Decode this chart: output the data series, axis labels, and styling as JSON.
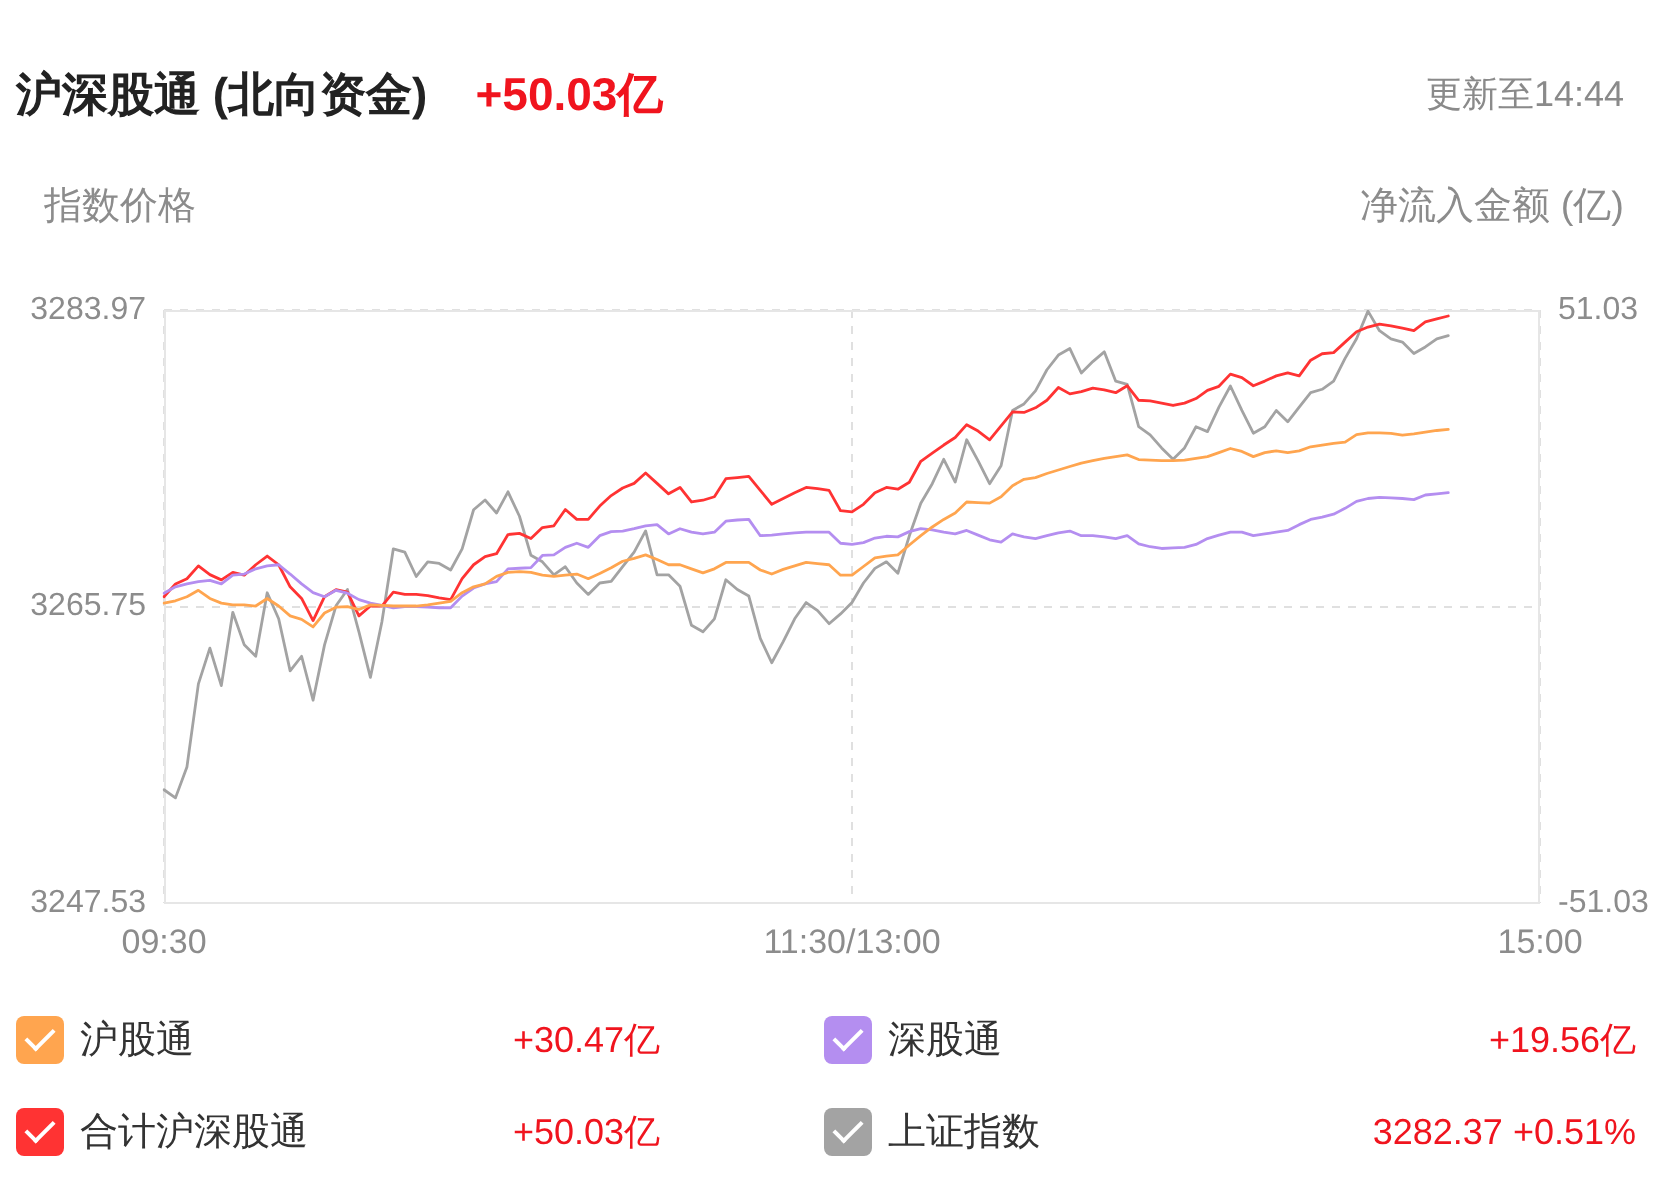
{
  "chart_data": {
    "type": "line",
    "title": "沪深股通 (北向资金)",
    "subtitle": "+50.03亿",
    "ylabel": "指数价格",
    "y2label": "净流入金额 (亿)",
    "annotations": [
      "更新至14:44",
      "+30.47亿",
      "+19.56亿",
      "+50.03亿",
      "3282.37 +0.51%"
    ],
    "categories": [
      "09:30",
      null,
      null,
      null,
      null,
      null,
      null,
      null,
      null,
      null,
      null,
      null,
      null,
      null,
      null,
      null,
      null,
      null,
      null,
      null,
      null,
      null,
      null,
      null,
      null,
      null,
      null,
      null,
      null,
      null,
      null,
      null,
      null,
      null,
      null,
      null,
      null,
      null,
      null,
      null,
      null,
      null,
      null,
      null,
      null,
      null,
      null,
      null,
      null,
      null,
      null,
      null,
      null,
      null,
      null,
      null,
      null,
      null,
      null,
      null,
      "11:30/13:00",
      null,
      null,
      null,
      null,
      null,
      null,
      null,
      null,
      null,
      null,
      null,
      null,
      null,
      null,
      null,
      null,
      null,
      null,
      null,
      null,
      null,
      null,
      null,
      null,
      null,
      null,
      null,
      null,
      null,
      null,
      null,
      null,
      null,
      null,
      null,
      null,
      null,
      null,
      null,
      null,
      null,
      null,
      null,
      null,
      null,
      null,
      null,
      null,
      null,
      null,
      null,
      null,
      null,
      null,
      null,
      null,
      null,
      null,
      null,
      "15:00"
    ],
    "ylim": [
      3247.53,
      3283.97
    ],
    "yticks": [
      3247.53,
      3265.75,
      3283.97
    ],
    "y2lim": [
      -51.03,
      51.03
    ],
    "y2ticks": [
      -51.03,
      51.03
    ],
    "grid": true,
    "legend": "bottom",
    "series": [
      {
        "name": "沪股通",
        "color": "#ffa54f",
        "axis": "y2",
        "values": [
          0.6,
          1.0,
          1.7,
          2.8,
          1.4,
          0.6,
          0.3,
          0.3,
          0.1,
          1.4,
          0.1,
          -1.6,
          -2.2,
          -3.5,
          -1.1,
          -0.1,
          0.0,
          -0.5,
          0.3,
          0.2,
          0.1,
          0.1,
          0.1,
          0.3,
          0.6,
          0.9,
          2.4,
          3.4,
          3.9,
          5.2,
          5.9,
          6.0,
          5.9,
          5.4,
          5.2,
          5.4,
          5.6,
          4.8,
          5.7,
          6.7,
          7.8,
          8.3,
          8.9,
          8.1,
          7.2,
          7.2,
          6.5,
          5.8,
          6.5,
          7.6,
          7.6,
          7.6,
          6.3,
          5.6,
          6.4,
          7.0,
          7.6,
          7.4,
          7.2,
          5.4,
          5.4,
          6.9,
          8.4,
          8.7,
          8.9,
          10.6,
          12.2,
          13.7,
          15.0,
          16.1,
          18.0,
          17.9,
          17.8,
          18.9,
          20.8,
          21.9,
          22.2,
          22.9,
          23.5,
          24.1,
          24.7,
          25.1,
          25.5,
          25.8,
          26.1,
          25.3,
          25.2,
          25.1,
          25.1,
          25.2,
          25.5,
          25.8,
          26.5,
          27.2,
          26.7,
          25.8,
          26.5,
          26.8,
          26.5,
          26.8,
          27.5,
          27.8,
          28.1,
          28.3,
          29.6,
          29.9,
          29.9,
          29.8,
          29.5,
          29.7,
          30.0,
          30.3,
          30.5,
          null,
          null,
          null,
          null,
          null,
          null,
          null,
          null
        ]
      },
      {
        "name": "深股通",
        "color": "#b48ef0",
        "axis": "y2",
        "values": [
          2.3,
          3.4,
          3.9,
          4.3,
          4.5,
          3.9,
          5.4,
          5.6,
          6.5,
          7.0,
          7.2,
          5.6,
          3.9,
          2.4,
          1.7,
          2.8,
          2.3,
          1.2,
          0.6,
          0.2,
          -0.2,
          0.0,
          0.0,
          -0.1,
          -0.2,
          -0.2,
          1.8,
          3.2,
          3.9,
          4.3,
          6.5,
          6.6,
          6.7,
          8.8,
          8.9,
          10.2,
          10.9,
          10.2,
          12.2,
          12.9,
          13.0,
          13.4,
          13.9,
          14.1,
          12.5,
          13.4,
          12.8,
          12.5,
          12.8,
          14.7,
          14.9,
          15.0,
          12.2,
          12.3,
          12.5,
          12.7,
          12.8,
          12.8,
          12.8,
          10.9,
          10.7,
          11.0,
          11.8,
          12.1,
          12.0,
          12.9,
          13.4,
          13.2,
          12.8,
          12.5,
          13.1,
          12.3,
          11.5,
          11.1,
          12.5,
          12.0,
          11.7,
          12.2,
          12.7,
          13.0,
          12.2,
          12.2,
          12.0,
          11.7,
          12.2,
          10.8,
          10.3,
          10.0,
          10.1,
          10.2,
          10.7,
          11.7,
          12.3,
          12.8,
          12.8,
          12.2,
          12.5,
          12.8,
          13.1,
          14.1,
          15.0,
          15.4,
          15.9,
          16.9,
          18.1,
          18.6,
          18.8,
          18.7,
          18.6,
          18.4,
          19.2,
          19.4,
          19.6,
          null,
          null,
          null,
          null,
          null,
          null,
          null,
          null
        ]
      },
      {
        "name": "合计沪深股通",
        "color": "#ff3333",
        "axis": "y2",
        "values": [
          1.7,
          3.9,
          4.8,
          7.0,
          5.5,
          4.6,
          5.9,
          5.4,
          7.2,
          8.7,
          7.2,
          3.4,
          1.4,
          -2.4,
          1.7,
          2.9,
          2.5,
          -1.6,
          0.1,
          0.1,
          2.5,
          2.1,
          2.1,
          1.9,
          1.5,
          1.2,
          4.8,
          7.2,
          8.6,
          9.1,
          12.4,
          12.6,
          11.7,
          13.6,
          13.9,
          16.7,
          15.0,
          15.0,
          17.3,
          19.1,
          20.4,
          21.2,
          23.0,
          21.2,
          19.4,
          20.5,
          18.0,
          18.3,
          18.9,
          22.0,
          22.2,
          22.4,
          20.0,
          17.6,
          18.6,
          19.6,
          20.5,
          20.3,
          20.0,
          16.5,
          16.3,
          17.6,
          19.6,
          20.5,
          20.2,
          21.4,
          25.0,
          26.4,
          27.8,
          29.1,
          31.3,
          30.2,
          28.7,
          31.1,
          33.5,
          33.4,
          34.2,
          35.5,
          37.7,
          36.6,
          37.0,
          37.6,
          37.3,
          36.8,
          38.0,
          35.5,
          35.4,
          35.0,
          34.6,
          35.0,
          35.8,
          37.2,
          37.9,
          40.0,
          39.4,
          38.0,
          38.8,
          39.7,
          40.2,
          39.7,
          42.4,
          43.5,
          43.7,
          45.5,
          47.3,
          48.1,
          48.6,
          48.3,
          47.9,
          47.5,
          49.0,
          49.5,
          50.0,
          null,
          null,
          null,
          null,
          null,
          null,
          null,
          null
        ]
      },
      {
        "name": "上证指数",
        "color": "#a3a3a3",
        "values": [
          3254.5,
          3254.0,
          3255.9,
          3261.0,
          3263.2,
          3260.9,
          3265.4,
          3263.4,
          3262.7,
          3266.6,
          3265.0,
          3261.8,
          3262.7,
          3260.0,
          3263.4,
          3265.8,
          3266.8,
          3264.2,
          3261.4,
          3264.8,
          3269.3,
          3269.1,
          3267.6,
          3268.5,
          3268.4,
          3268.0,
          3269.3,
          3271.7,
          3272.3,
          3271.5,
          3272.8,
          3271.3,
          3268.9,
          3268.5,
          3267.7,
          3268.2,
          3267.2,
          3266.5,
          3267.2,
          3267.3,
          3268.2,
          3269.1,
          3270.4,
          3267.7,
          3267.7,
          3267.0,
          3264.6,
          3264.2,
          3265.0,
          3267.4,
          3266.8,
          3266.4,
          3263.8,
          3262.3,
          3263.6,
          3265.0,
          3266.0,
          3265.5,
          3264.7,
          3265.3,
          3266.0,
          3267.2,
          3268.1,
          3268.5,
          3267.8,
          3270.1,
          3272.1,
          3273.3,
          3274.8,
          3273.4,
          3276.0,
          3274.7,
          3273.3,
          3274.4,
          3277.8,
          3278.2,
          3279.0,
          3280.3,
          3281.2,
          3281.6,
          3280.1,
          3280.8,
          3281.4,
          3279.6,
          3279.4,
          3276.8,
          3276.3,
          3275.5,
          3274.8,
          3275.5,
          3276.8,
          3276.5,
          3278.0,
          3279.3,
          3277.8,
          3276.4,
          3276.8,
          3277.8,
          3277.1,
          3278.0,
          3278.9,
          3279.1,
          3279.6,
          3281.0,
          3282.2,
          3283.9,
          3282.7,
          3282.2,
          3282.0,
          3281.3,
          3281.7,
          3282.2,
          3282.4,
          null,
          null,
          null,
          null,
          null,
          null,
          null,
          null
        ]
      }
    ]
  }
}
